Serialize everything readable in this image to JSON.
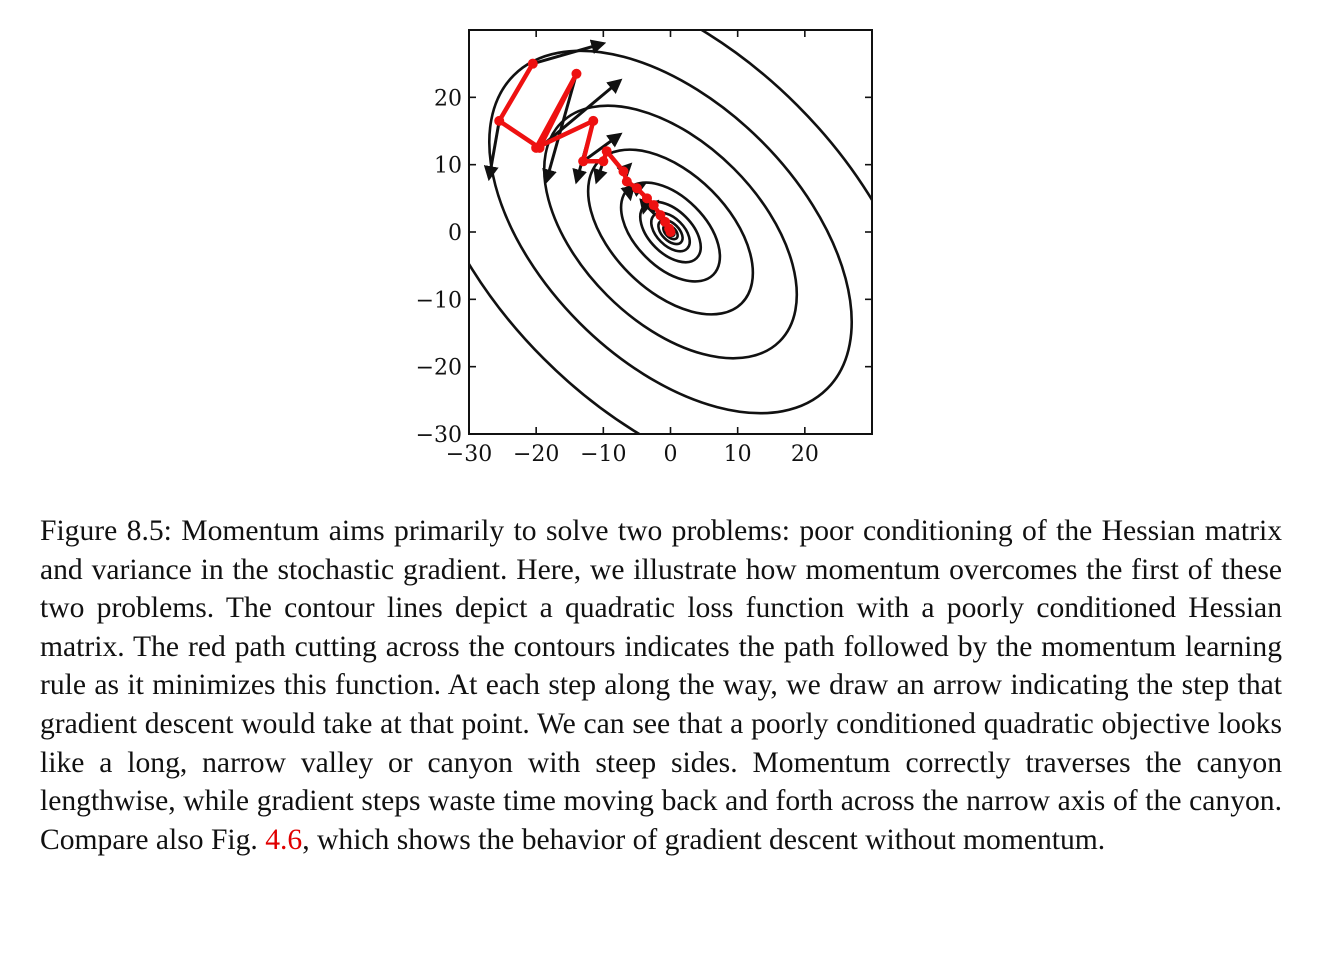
{
  "chart_data": {
    "type": "contour",
    "xlim": [
      -30,
      30
    ],
    "ylim": [
      -30,
      30
    ],
    "x_ticks": [
      -30,
      -20,
      -10,
      0,
      10,
      20
    ],
    "x_tick_labels": [
      "−30",
      "−20",
      "−10",
      "0",
      "10",
      "20"
    ],
    "y_ticks": [
      -30,
      -20,
      -10,
      0,
      10,
      20
    ],
    "y_tick_labels": [
      "−30",
      "−20",
      "−10",
      "0",
      "10",
      "20"
    ],
    "contour_center": [
      0,
      0
    ],
    "contour_axis_ratio": 0.58,
    "contour_major_axis_angle_deg": -45,
    "contour_semi_major_values": [
      0.7,
      1.3,
      2.2,
      3.5,
      5.5,
      9,
      15,
      23,
      33,
      46
    ],
    "momentum_path": {
      "color": "#ee1111",
      "points": [
        [
          -20.5,
          25
        ],
        [
          -25.5,
          16.5
        ],
        [
          -19.5,
          12.5
        ],
        [
          -14,
          23.5
        ],
        [
          -20,
          12.5
        ],
        [
          -11.5,
          16.5
        ],
        [
          -13,
          10.5
        ],
        [
          -10,
          10.5
        ],
        [
          -9.5,
          12
        ],
        [
          -7,
          9
        ],
        [
          -6.5,
          7.5
        ],
        [
          -5,
          6.5
        ],
        [
          -3.5,
          5
        ],
        [
          -2.5,
          4
        ],
        [
          -1.5,
          2.5
        ],
        [
          -0.8,
          1.5
        ],
        [
          -0.2,
          0.5
        ],
        [
          0,
          0
        ]
      ]
    },
    "gradient_arrows": [
      {
        "from": [
          -20.5,
          25
        ],
        "to": [
          -10,
          28
        ]
      },
      {
        "from": [
          -25.5,
          16.5
        ],
        "to": [
          -27,
          8
        ]
      },
      {
        "from": [
          -19.5,
          12.5
        ],
        "to": [
          -7.5,
          22.5
        ]
      },
      {
        "from": [
          -14,
          23.5
        ],
        "to": [
          -18.5,
          7.5
        ]
      },
      {
        "from": [
          -11.5,
          16.5
        ],
        "to": [
          -14,
          7.5
        ]
      },
      {
        "from": [
          -13,
          10.5
        ],
        "to": [
          -7.5,
          14.5
        ]
      },
      {
        "from": [
          -10,
          10.5
        ],
        "to": [
          -11,
          7.5
        ]
      },
      {
        "from": [
          -7,
          9
        ],
        "to": [
          -6,
          10
        ]
      },
      {
        "from": [
          -6.5,
          7.5
        ],
        "to": [
          -6,
          5
        ]
      },
      {
        "from": [
          -5,
          6.5
        ],
        "to": [
          -4,
          7
        ]
      },
      {
        "from": [
          -3.5,
          5
        ],
        "to": [
          -4,
          3
        ]
      },
      {
        "from": [
          -2.5,
          4
        ],
        "to": [
          -2,
          4.5
        ]
      }
    ]
  },
  "caption": {
    "lead": "Figure 8.5: Momentum aims primarily to solve two problems: poor conditioning of the Hessian matrix and variance in the stochastic gradient. Here, we illustrate how momentum overcomes the first of these two problems. The contour lines depict a quadratic loss function with a poorly conditioned Hessian matrix. The red path cutting across the contours indicates the path followed by the momentum learning rule as it minimizes this function. At each step along the way, we draw an arrow indicating the step that gradient descent would take at that point. We can see that a poorly conditioned quadratic objective looks like a long, narrow valley or canyon with steep sides. Momentum correctly traverses the canyon lengthwise, while gradient steps waste time moving back and forth across the narrow axis of the canyon. Compare also Fig. ",
    "ref": "4.6",
    "tail": ", which shows the behavior of gradient descent without momentum."
  }
}
